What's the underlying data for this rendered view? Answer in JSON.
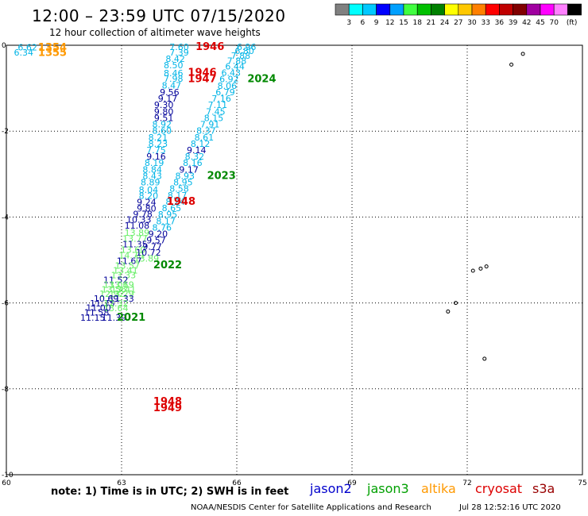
{
  "header": {
    "title": "12:00 – 23:59 UTC 07/15/2020",
    "subtitle": "12 hour collection of altimeter wave heights"
  },
  "legend": {
    "unit": "(ft)",
    "bins": [
      {
        "label": "",
        "color": "#808080"
      },
      {
        "label": "3",
        "color": "#00ffff"
      },
      {
        "label": "6",
        "color": "#00c8ff"
      },
      {
        "label": "9",
        "color": "#0000ff"
      },
      {
        "label": "12",
        "color": "#00a0ff"
      },
      {
        "label": "15",
        "color": "#40ff40"
      },
      {
        "label": "18",
        "color": "#00c000"
      },
      {
        "label": "21",
        "color": "#008000"
      },
      {
        "label": "24",
        "color": "#ffff00"
      },
      {
        "label": "27",
        "color": "#ffc800"
      },
      {
        "label": "30",
        "color": "#ff8000"
      },
      {
        "label": "33",
        "color": "#ff0000"
      },
      {
        "label": "36",
        "color": "#c00000"
      },
      {
        "label": "39",
        "color": "#800000"
      },
      {
        "label": "42",
        "color": "#a000a0"
      },
      {
        "label": "45",
        "color": "#ff00ff"
      },
      {
        "label": "70",
        "color": "#ff80ff"
      },
      {
        "label": "",
        "color": "#000000"
      }
    ]
  },
  "axes": {
    "lon_ticks": [
      "60",
      "63",
      "66",
      "69",
      "72",
      "75"
    ],
    "lat_ticks": [
      "0",
      "-2",
      "-4",
      "-6",
      "-8",
      "-10"
    ]
  },
  "footer": {
    "note": "note: 1) Time is in UTC; 2) SWH is in feet",
    "satellites": [
      {
        "name": "jason2",
        "color": "#0000cc"
      },
      {
        "name": "jason3",
        "color": "#00a000"
      },
      {
        "name": "altika",
        "color": "#ff9900"
      },
      {
        "name": "cryosat",
        "color": "#dd0000"
      },
      {
        "name": "s3a",
        "color": "#990000"
      }
    ],
    "credit": "NOAA/NESDIS Center for Satellite Applications and Research",
    "timestamp": "Jul 28 12:52:16 UTC 2020"
  },
  "chart_data": {
    "type": "scatter",
    "x_range": [
      60,
      75
    ],
    "y_range": [
      -10,
      0
    ],
    "palette": {
      "cyan": "#00b4e6",
      "navy": "#000099",
      "lgreen": "#66ee66",
      "green": "#008800",
      "red": "#dd0000",
      "orange": "#ff9900"
    },
    "points": [
      {
        "x": 60.55,
        "y": -0.05,
        "t": "6.62",
        "c": "cyan"
      },
      {
        "x": 60.45,
        "y": -0.17,
        "t": "6.34",
        "c": "cyan"
      },
      {
        "x": 61.2,
        "y": -0.06,
        "t": "1354",
        "c": "orange"
      },
      {
        "x": 61.2,
        "y": -0.18,
        "t": "1355",
        "c": "orange"
      },
      {
        "x": 64.5,
        "y": -0.04,
        "t": "7.60",
        "c": "cyan"
      },
      {
        "x": 65.3,
        "y": -0.04,
        "t": "1946",
        "c": "red"
      },
      {
        "x": 64.5,
        "y": -0.17,
        "t": "7.39",
        "c": "cyan"
      },
      {
        "x": 64.4,
        "y": -0.31,
        "t": "8.42",
        "c": "cyan"
      },
      {
        "x": 64.35,
        "y": -0.46,
        "t": "8.50",
        "c": "cyan"
      },
      {
        "x": 64.35,
        "y": -0.65,
        "t": "8.46",
        "c": "cyan"
      },
      {
        "x": 64.35,
        "y": -0.78,
        "t": "7.98",
        "c": "cyan"
      },
      {
        "x": 64.3,
        "y": -0.93,
        "t": "8.47",
        "c": "cyan"
      },
      {
        "x": 64.25,
        "y": -1.09,
        "t": "9.56",
        "c": "navy"
      },
      {
        "x": 64.2,
        "y": -1.24,
        "t": "9.17",
        "c": "navy"
      },
      {
        "x": 64.1,
        "y": -1.39,
        "t": "9.30",
        "c": "navy"
      },
      {
        "x": 64.1,
        "y": -1.54,
        "t": "9.80",
        "c": "navy"
      },
      {
        "x": 64.1,
        "y": -1.69,
        "t": "9.51",
        "c": "navy"
      },
      {
        "x": 64.05,
        "y": -1.84,
        "t": "8.92",
        "c": "cyan"
      },
      {
        "x": 64.05,
        "y": -1.99,
        "t": "8.60",
        "c": "cyan"
      },
      {
        "x": 63.95,
        "y": -2.14,
        "t": "8.21",
        "c": "cyan"
      },
      {
        "x": 63.95,
        "y": -2.29,
        "t": "8.23",
        "c": "cyan"
      },
      {
        "x": 63.9,
        "y": -2.44,
        "t": "7.75",
        "c": "cyan"
      },
      {
        "x": 63.9,
        "y": -2.59,
        "t": "9.16",
        "c": "navy"
      },
      {
        "x": 63.85,
        "y": -2.74,
        "t": "8.19",
        "c": "cyan"
      },
      {
        "x": 63.8,
        "y": -2.89,
        "t": "8.84",
        "c": "cyan"
      },
      {
        "x": 63.8,
        "y": -3.04,
        "t": "8.43",
        "c": "cyan"
      },
      {
        "x": 63.75,
        "y": -3.19,
        "t": "8.89",
        "c": "cyan"
      },
      {
        "x": 63.7,
        "y": -3.36,
        "t": "8.04",
        "c": "cyan"
      },
      {
        "x": 63.7,
        "y": -3.5,
        "t": "8.20",
        "c": "cyan"
      },
      {
        "x": 63.65,
        "y": -3.65,
        "t": "9.24",
        "c": "navy"
      },
      {
        "x": 63.65,
        "y": -3.8,
        "t": "9.80",
        "c": "navy"
      },
      {
        "x": 63.55,
        "y": -3.93,
        "t": "9.78",
        "c": "navy"
      },
      {
        "x": 63.45,
        "y": -4.06,
        "t": "10.33",
        "c": "navy"
      },
      {
        "x": 63.4,
        "y": -4.2,
        "t": "11.08",
        "c": "navy"
      },
      {
        "x": 63.4,
        "y": -4.36,
        "t": "13.89",
        "c": "lgreen"
      },
      {
        "x": 63.35,
        "y": -4.5,
        "t": "13.77",
        "c": "lgreen"
      },
      {
        "x": 63.35,
        "y": -4.63,
        "t": "11.35",
        "c": "navy"
      },
      {
        "x": 63.3,
        "y": -4.76,
        "t": "13.60",
        "c": "lgreen"
      },
      {
        "x": 63.25,
        "y": -4.89,
        "t": "14.70",
        "c": "lgreen"
      },
      {
        "x": 63.2,
        "y": -5.02,
        "t": "11.67",
        "c": "navy"
      },
      {
        "x": 63.15,
        "y": -5.13,
        "t": "13.57",
        "c": "lgreen"
      },
      {
        "x": 63.1,
        "y": -5.24,
        "t": "13.41",
        "c": "lgreen"
      },
      {
        "x": 63.05,
        "y": -5.35,
        "t": "13.33",
        "c": "lgreen"
      },
      {
        "x": 62.85,
        "y": -5.46,
        "t": "11.52",
        "c": "navy"
      },
      {
        "x": 62.85,
        "y": -5.57,
        "t": "13.06",
        "c": "lgreen"
      },
      {
        "x": 63.0,
        "y": -5.57,
        "t": "13.19",
        "c": "lgreen"
      },
      {
        "x": 63.05,
        "y": -5.68,
        "t": "13.41",
        "c": "lgreen"
      },
      {
        "x": 62.8,
        "y": -5.68,
        "t": "13.56",
        "c": "lgreen"
      },
      {
        "x": 62.75,
        "y": -5.79,
        "t": "12.92",
        "c": "lgreen"
      },
      {
        "x": 63.0,
        "y": -5.79,
        "t": "13.29",
        "c": "lgreen"
      },
      {
        "x": 62.6,
        "y": -5.9,
        "t": "10.69",
        "c": "navy"
      },
      {
        "x": 63.0,
        "y": -5.9,
        "t": "11.33",
        "c": "navy"
      },
      {
        "x": 62.5,
        "y": -6.01,
        "t": "11.75",
        "c": "navy"
      },
      {
        "x": 62.85,
        "y": -6.01,
        "t": "12.32",
        "c": "lgreen"
      },
      {
        "x": 62.4,
        "y": -6.11,
        "t": "11.00",
        "c": "navy"
      },
      {
        "x": 62.85,
        "y": -6.12,
        "t": "13.64",
        "c": "lgreen"
      },
      {
        "x": 62.35,
        "y": -6.22,
        "t": "11.58",
        "c": "navy"
      },
      {
        "x": 62.25,
        "y": -6.34,
        "t": "11.15",
        "c": "navy"
      },
      {
        "x": 62.8,
        "y": -6.34,
        "t": "11.39",
        "c": "navy"
      },
      {
        "x": 63.25,
        "y": -6.34,
        "t": "2021",
        "c": "green"
      },
      {
        "x": 66.25,
        "y": -0.04,
        "t": "6.96",
        "c": "cyan"
      },
      {
        "x": 66.2,
        "y": -0.13,
        "t": "6.80",
        "c": "cyan"
      },
      {
        "x": 66.1,
        "y": -0.24,
        "t": "7.88",
        "c": "cyan"
      },
      {
        "x": 66.0,
        "y": -0.36,
        "t": "7.88",
        "c": "cyan"
      },
      {
        "x": 65.95,
        "y": -0.49,
        "t": "6.44",
        "c": "cyan"
      },
      {
        "x": 65.85,
        "y": -0.64,
        "t": "6.43",
        "c": "cyan"
      },
      {
        "x": 65.1,
        "y": -0.64,
        "t": "1946",
        "c": "red"
      },
      {
        "x": 65.1,
        "y": -0.79,
        "t": "1947",
        "c": "red"
      },
      {
        "x": 65.8,
        "y": -0.79,
        "t": "6.92",
        "c": "cyan"
      },
      {
        "x": 66.65,
        "y": -0.79,
        "t": "2024",
        "c": "green"
      },
      {
        "x": 65.75,
        "y": -0.94,
        "t": "8.06",
        "c": "cyan"
      },
      {
        "x": 65.7,
        "y": -1.09,
        "t": "6.79",
        "c": "cyan"
      },
      {
        "x": 65.6,
        "y": -1.24,
        "t": "7.16",
        "c": "cyan"
      },
      {
        "x": 65.5,
        "y": -1.39,
        "t": "7.11",
        "c": "cyan"
      },
      {
        "x": 65.45,
        "y": -1.54,
        "t": "7.45",
        "c": "cyan"
      },
      {
        "x": 65.4,
        "y": -1.69,
        "t": "8.15",
        "c": "cyan"
      },
      {
        "x": 65.3,
        "y": -1.84,
        "t": "7.91",
        "c": "cyan"
      },
      {
        "x": 65.2,
        "y": -1.99,
        "t": "8.37",
        "c": "cyan"
      },
      {
        "x": 65.15,
        "y": -2.14,
        "t": "8.61",
        "c": "cyan"
      },
      {
        "x": 65.05,
        "y": -2.29,
        "t": "8.12",
        "c": "cyan"
      },
      {
        "x": 64.95,
        "y": -2.44,
        "t": "9.14",
        "c": "navy"
      },
      {
        "x": 64.9,
        "y": -2.59,
        "t": "8.32",
        "c": "cyan"
      },
      {
        "x": 64.85,
        "y": -2.74,
        "t": "8.16",
        "c": "cyan"
      },
      {
        "x": 64.75,
        "y": -2.89,
        "t": "9.17",
        "c": "navy"
      },
      {
        "x": 64.65,
        "y": -3.04,
        "t": "8.93",
        "c": "cyan"
      },
      {
        "x": 65.6,
        "y": -3.04,
        "t": "2023",
        "c": "green"
      },
      {
        "x": 64.6,
        "y": -3.19,
        "t": "8.95",
        "c": "cyan"
      },
      {
        "x": 64.5,
        "y": -3.34,
        "t": "8.58",
        "c": "cyan"
      },
      {
        "x": 64.45,
        "y": -3.49,
        "t": "8.17",
        "c": "cyan"
      },
      {
        "x": 64.4,
        "y": -3.64,
        "t": "8.24",
        "c": "cyan"
      },
      {
        "x": 64.55,
        "y": -3.64,
        "t": "1948",
        "c": "red"
      },
      {
        "x": 64.3,
        "y": -3.79,
        "t": "8.65",
        "c": "cyan"
      },
      {
        "x": 64.2,
        "y": -3.94,
        "t": "8.95",
        "c": "cyan"
      },
      {
        "x": 64.15,
        "y": -4.09,
        "t": "8.17",
        "c": "cyan"
      },
      {
        "x": 64.05,
        "y": -4.24,
        "t": "8.76",
        "c": "cyan"
      },
      {
        "x": 63.95,
        "y": -4.39,
        "t": "9.20",
        "c": "navy"
      },
      {
        "x": 63.9,
        "y": -4.54,
        "t": "9.57",
        "c": "navy"
      },
      {
        "x": 63.8,
        "y": -4.69,
        "t": "9.77",
        "c": "navy"
      },
      {
        "x": 63.7,
        "y": -4.82,
        "t": "10.72",
        "c": "navy"
      },
      {
        "x": 63.65,
        "y": -4.96,
        "t": "13.89",
        "c": "lgreen"
      },
      {
        "x": 64.2,
        "y": -5.12,
        "t": "2022",
        "c": "green"
      },
      {
        "x": 64.2,
        "y": -8.3,
        "t": "1948",
        "c": "red"
      },
      {
        "x": 64.2,
        "y": -8.45,
        "t": "1949",
        "c": "red"
      }
    ],
    "islands": [
      {
        "name": "",
        "points": [
          [
            73.45,
            -0.2
          ]
        ]
      },
      {
        "name": "",
        "points": [
          [
            73.15,
            -0.45
          ]
        ]
      },
      {
        "name": "",
        "points": [
          [
            72.15,
            -5.25
          ]
        ]
      },
      {
        "name": "",
        "points": [
          [
            72.35,
            -5.2
          ]
        ]
      },
      {
        "name": "",
        "points": [
          [
            72.5,
            -5.15
          ]
        ]
      },
      {
        "name": "",
        "points": [
          [
            71.5,
            -6.2
          ]
        ]
      },
      {
        "name": "",
        "points": [
          [
            71.7,
            -6.0
          ]
        ]
      },
      {
        "name": "",
        "points": [
          [
            72.45,
            -7.3
          ]
        ]
      }
    ]
  }
}
